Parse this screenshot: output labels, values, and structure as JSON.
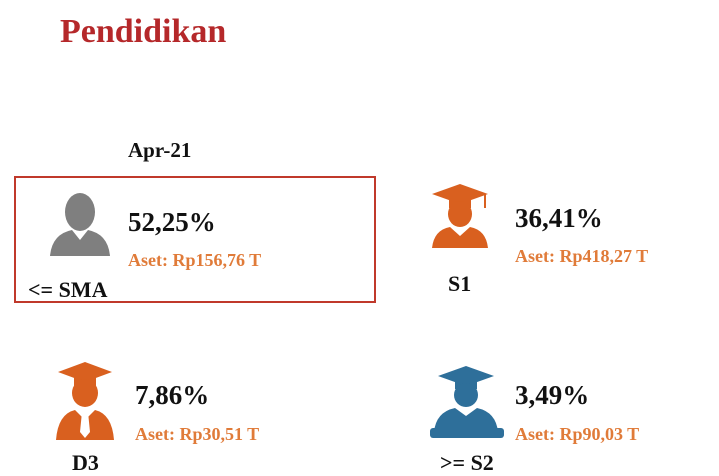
{
  "title": "Pendidikan",
  "period": "Apr-21",
  "items": [
    {
      "label": "<= SMA",
      "percent": "52,25%",
      "asset": "Aset: Rp156,76 T"
    },
    {
      "label": "S1",
      "percent": "36,41%",
      "asset": "Aset: Rp418,27 T"
    },
    {
      "label": "D3",
      "percent": "7,86%",
      "asset": "Aset: Rp30,51 T"
    },
    {
      "label": ">= S2",
      "percent": "3,49%",
      "asset": "Aset: Rp90,03 T"
    }
  ]
}
